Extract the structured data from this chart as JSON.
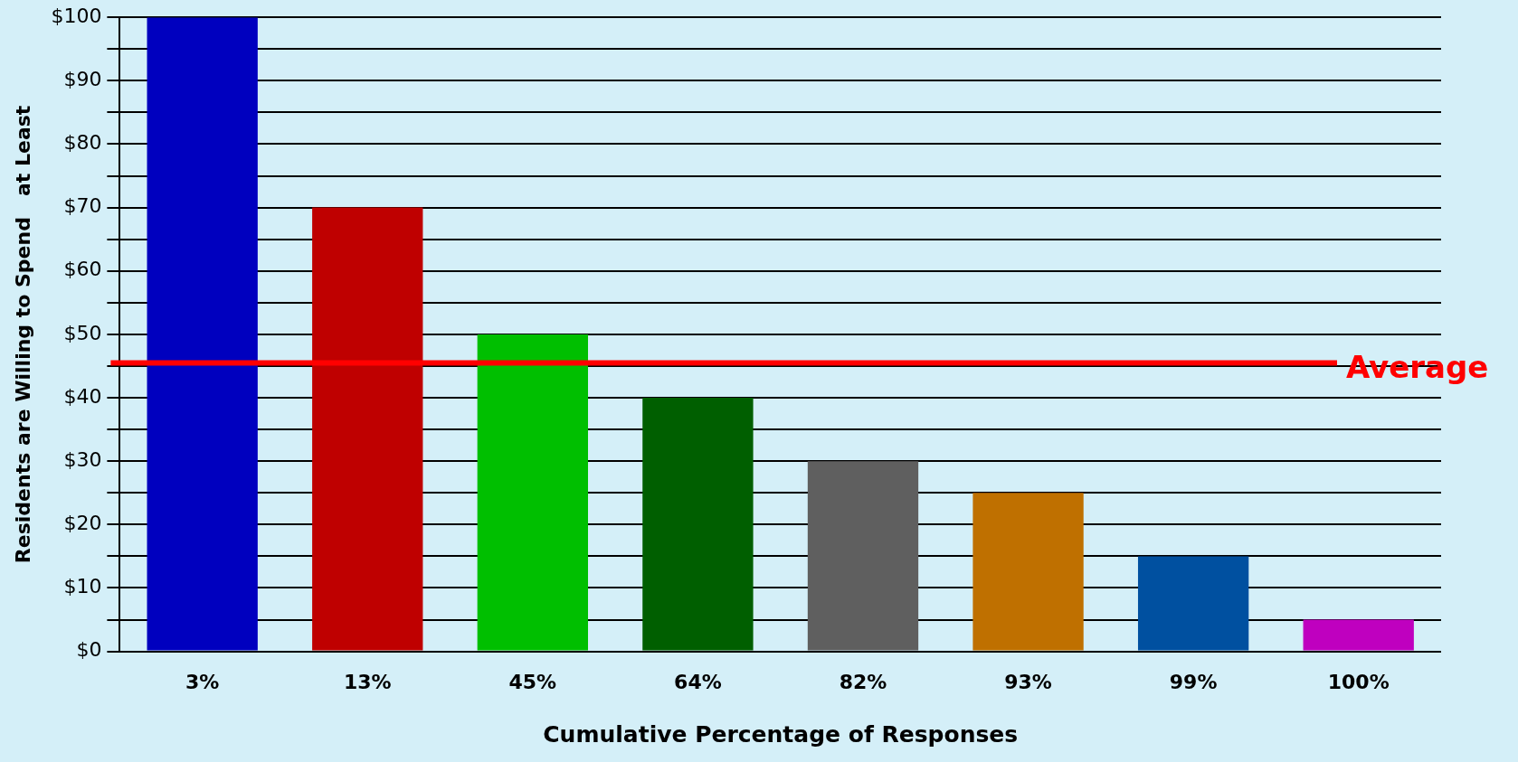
{
  "chart_data": {
    "type": "bar",
    "xlabel": "Cumulative Percentage of Responses",
    "ylabel": "Residents are Willing to Spend   at Least",
    "categories": [
      "3%",
      "13%",
      "45%",
      "64%",
      "82%",
      "93%",
      "99%",
      "100%"
    ],
    "values": [
      100,
      70,
      50,
      40,
      30,
      25,
      15,
      5
    ],
    "colors": [
      "#0000bf",
      "#bf0000",
      "#00bf00",
      "#005f00",
      "#5f5f5f",
      "#bf7000",
      "#0050a0",
      "#bf00bf"
    ],
    "ylim": [
      0,
      100
    ],
    "yticks": [
      {
        "value": 0,
        "label": "$0"
      },
      {
        "value": 5,
        "label": null
      },
      {
        "value": 10,
        "label": "$10"
      },
      {
        "value": 15,
        "label": null
      },
      {
        "value": 20,
        "label": "$20"
      },
      {
        "value": 25,
        "label": null
      },
      {
        "value": 30,
        "label": "$30"
      },
      {
        "value": 35,
        "label": null
      },
      {
        "value": 40,
        "label": "$40"
      },
      {
        "value": 45,
        "label": null
      },
      {
        "value": 50,
        "label": "$50"
      },
      {
        "value": 55,
        "label": null
      },
      {
        "value": 60,
        "label": "$60"
      },
      {
        "value": 65,
        "label": null
      },
      {
        "value": 70,
        "label": "$70"
      },
      {
        "value": 75,
        "label": null
      },
      {
        "value": 80,
        "label": "$80"
      },
      {
        "value": 85,
        "label": null
      },
      {
        "value": 90,
        "label": "$90"
      },
      {
        "value": 95,
        "label": null
      },
      {
        "value": 100,
        "label": "$100"
      }
    ],
    "grid": "y",
    "ref_lines": [
      {
        "axis": "y",
        "value": 45.5,
        "label": "Average",
        "color": "#ff0000"
      }
    ]
  }
}
